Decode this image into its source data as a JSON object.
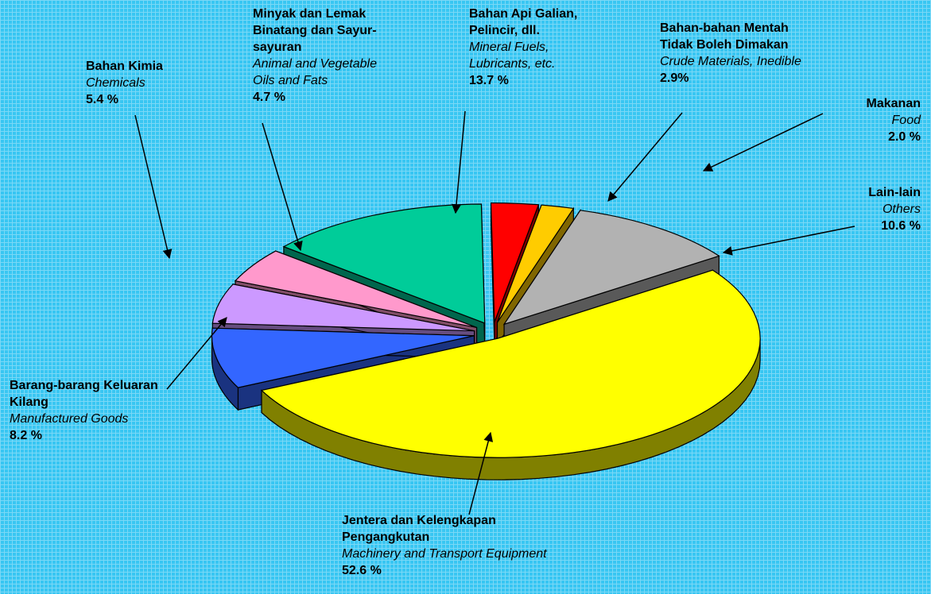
{
  "chart_data": {
    "type": "pie3d",
    "categories": [
      [
        "Jentera dan Kelengkapan",
        "Pengangkutan"
      ],
      [
        "Barang-barang Keluaran",
        "Kilang"
      ],
      [
        "Bahan Kimia"
      ],
      [
        "Minyak dan Lemak",
        "Binatang dan Sayur-",
        "sayuran"
      ],
      [
        "Bahan Api Galian,",
        "Pelincir, dll."
      ],
      [
        "Bahan-bahan Mentah",
        "Tidak Boleh Dimakan"
      ],
      [
        "Makanan"
      ],
      [
        "Lain-lain"
      ]
    ],
    "categories_en": [
      [
        "Machinery and Transport Equipment"
      ],
      [
        "Manufactured Goods"
      ],
      [
        "Chemicals"
      ],
      [
        "Animal and Vegetable",
        "Oils and Fats"
      ],
      [
        "Mineral Fuels,",
        "Lubricants, etc."
      ],
      [
        "Crude Materials, Inedible"
      ],
      [
        "Food"
      ],
      [
        "Others"
      ]
    ],
    "values": [
      52.6,
      8.2,
      5.4,
      4.7,
      13.7,
      2.9,
      2.0,
      10.6
    ],
    "value_labels": [
      "52.6 %",
      "8.2 %",
      "5.4 %",
      "4.7 %",
      "13.7 %",
      "2.9%",
      "2.0 %",
      "10.6 %"
    ],
    "colors": [
      "#ffff00",
      "#3366ff",
      "#cc99ff",
      "#ff99cc",
      "#00cc99",
      "#ff0000",
      "#ffcc00",
      "#b2b2b2"
    ]
  }
}
